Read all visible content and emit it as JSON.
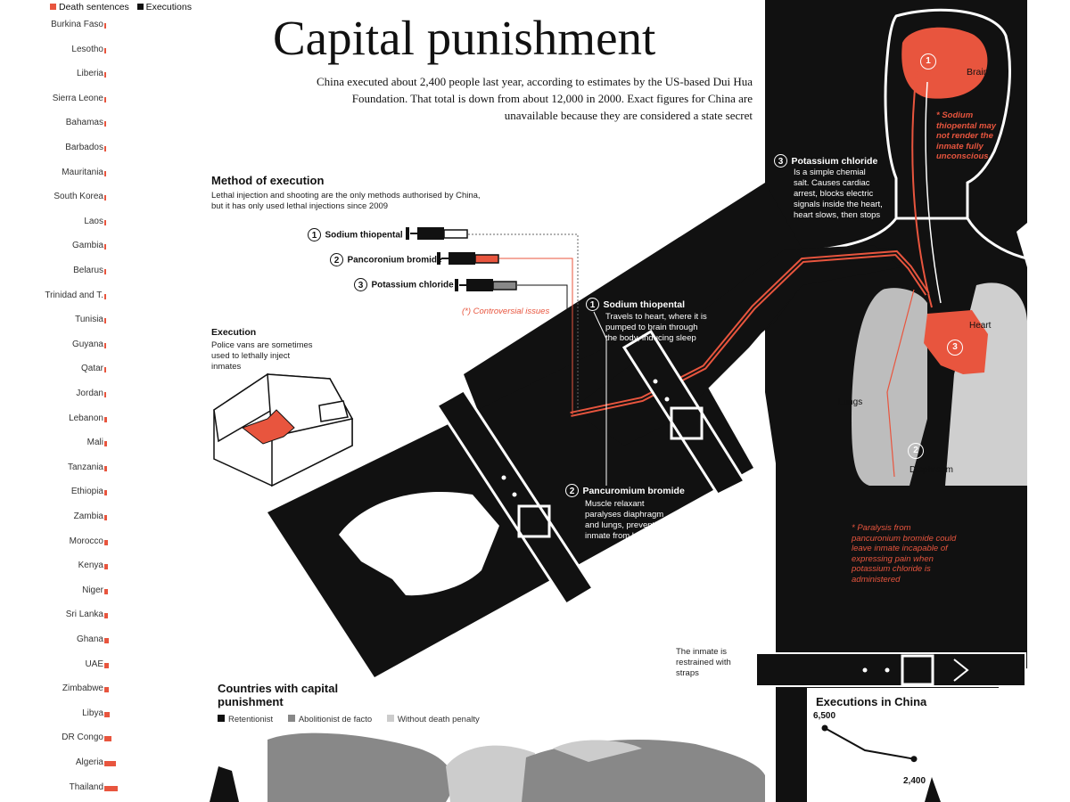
{
  "title": "Capital punishment",
  "intro": "China executed about 2,400 people last year, according to estimates by the US-based Dui Hua Foundation. That total is down from about 12,000 in 2000. Exact figures for China are unavailable because they are considered a state secret",
  "legend": {
    "death_sentences": "Death sentences",
    "executions": "Executions",
    "death_color": "#e8553e",
    "exec_color": "#111111"
  },
  "countries": [
    {
      "name": "Burkina Faso",
      "value": 1
    },
    {
      "name": "Lesotho",
      "value": 1
    },
    {
      "name": "Liberia",
      "value": 1
    },
    {
      "name": "Sierra Leone",
      "value": 1
    },
    {
      "name": "Bahamas",
      "value": 1
    },
    {
      "name": "Barbados",
      "value": 1
    },
    {
      "name": "Mauritania",
      "value": 1
    },
    {
      "name": "South Korea",
      "value": 1
    },
    {
      "name": "Laos",
      "value": 1
    },
    {
      "name": "Gambia",
      "value": 2
    },
    {
      "name": "Belarus",
      "value": 2
    },
    {
      "name": "Trinidad and T.",
      "value": 2
    },
    {
      "name": "Tunisia",
      "value": 2
    },
    {
      "name": "Guyana",
      "value": 2
    },
    {
      "name": "Qatar",
      "value": 2
    },
    {
      "name": "Jordan",
      "value": 2
    },
    {
      "name": "Lebanon",
      "value": 3
    },
    {
      "name": "Mali",
      "value": 3
    },
    {
      "name": "Tanzania",
      "value": 3
    },
    {
      "name": "Ethiopia",
      "value": 3
    },
    {
      "name": "Zambia",
      "value": 3
    },
    {
      "name": "Morocco",
      "value": 4
    },
    {
      "name": "Kenya",
      "value": 4
    },
    {
      "name": "Niger",
      "value": 4
    },
    {
      "name": "Sri Lanka",
      "value": 4
    },
    {
      "name": "Ghana",
      "value": 5
    },
    {
      "name": "UAE",
      "value": 5
    },
    {
      "name": "Zimbabwe",
      "value": 5
    },
    {
      "name": "Libya",
      "value": 6
    },
    {
      "name": "DR Congo",
      "value": 8
    },
    {
      "name": "Algeria",
      "value": 13
    },
    {
      "name": "Thailand",
      "value": 15
    }
  ],
  "method": {
    "heading": "Method of execution",
    "text": "Lethal injection and shooting are the only methods authorised by China, but it has only used lethal injections since 2009",
    "drugs": [
      {
        "num": "1",
        "name": "Sodium thiopental"
      },
      {
        "num": "2",
        "name": "Pancoronium bromide"
      },
      {
        "num": "3",
        "name": "Potassium chloride"
      }
    ],
    "controversial": "(*) Controversial issues"
  },
  "execution": {
    "heading": "Execution",
    "text": "Police vans are sometimes used to lethally inject inmates"
  },
  "steps": {
    "one_title": "Sodium thiopental",
    "one_text": "Travels to heart, where it is pumped to brain through the body, inducing sleep",
    "two_title": "Pancuromium bromide",
    "two_text": "Muscle relaxant paralyses diaphragm and lungs, preventing inmate from breathing",
    "three_title": "Potassium chloride",
    "three_text": "Is a simple chemial salt. Causes cardiac arrest, blocks electric signals inside the heart, heart slows, then stops"
  },
  "body": {
    "brain": "Brain",
    "heart": "Heart",
    "lungs": "Lungs",
    "diaphragm": "Diaphragm",
    "brain_note": "* Sodium thiopental may not render the inmate fully unconscious",
    "paralysis_note": "* Paralysis from pancuronium bromide could leave inmate incapable of expressing pain when potassium chloride is administered"
  },
  "strap_note": "The inmate is restrained with straps",
  "map": {
    "heading": "Countries with capital punishment",
    "legend": [
      "Retentionist",
      "Abolitionist de facto",
      "Without death penalty"
    ],
    "colors": [
      "#111111",
      "#888888",
      "#cccccc"
    ]
  },
  "china_chart": {
    "heading": "Executions in China",
    "chart_data": {
      "type": "line",
      "title": "Executions in China",
      "labels": [
        "6,500",
        "2,400"
      ],
      "values": [
        6500,
        2400
      ]
    }
  }
}
